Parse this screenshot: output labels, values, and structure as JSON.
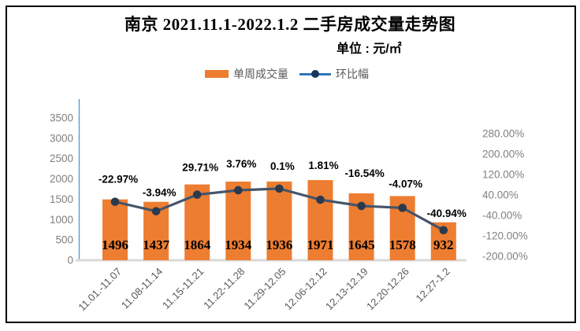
{
  "chart_data": {
    "type": "bar+line combo",
    "title": "南京 2021.11.1-2022.1.2 二手房成交量走势图",
    "subtitle": "单位 : 元/㎡",
    "categories": [
      "11.01.-11.07",
      "11.08-11.14",
      "11.15-11.21",
      "11.22-11.28",
      "11.29-12.05",
      "12.06-12.12",
      "12.13-12.19",
      "12.20-12.26",
      "12.27-1.2"
    ],
    "series": [
      {
        "name": "单周成交量",
        "type": "bar",
        "axis": "left",
        "values": [
          1496,
          1437,
          1864,
          1934,
          1936,
          1971,
          1645,
          1578,
          932
        ]
      },
      {
        "name": "环比幅",
        "type": "line",
        "axis": "right",
        "values_pct": [
          -22.97,
          -3.94,
          29.71,
          3.76,
          0.1,
          1.81,
          -16.54,
          -4.07,
          -40.94
        ],
        "labels": [
          "-22.97%",
          "-3.94%",
          "29.71%",
          "3.76%",
          "0.1%",
          "1.81%",
          "-16.54%",
          "-4.07%",
          "-40.94%"
        ]
      }
    ],
    "left_axis": {
      "ticks": [
        3500,
        3000,
        2500,
        2000,
        1500,
        1000,
        500,
        0
      ],
      "range": [
        0,
        3500
      ],
      "step": 500
    },
    "right_axis": {
      "ticks": [
        "280.00%",
        "200.00%",
        "120.00%",
        "40.00%",
        "-40.00%",
        "-120.00%",
        "-200.00%"
      ],
      "range_pct": [
        -200,
        280
      ]
    },
    "legend_position": "top-center",
    "grid": "off",
    "colors": {
      "bar": "#ED7D31",
      "line": "#44546A",
      "line_marker": "#2B3A4D",
      "legend_line": "#2E74B6",
      "legend_marker": "#17375E",
      "left_axis_line": "#5B9BD5",
      "baseline": "#D9D9D9",
      "tick_text": "#808080",
      "category_text": "#595959",
      "data_label_text": "#000000",
      "frame_border": "#000000"
    }
  }
}
